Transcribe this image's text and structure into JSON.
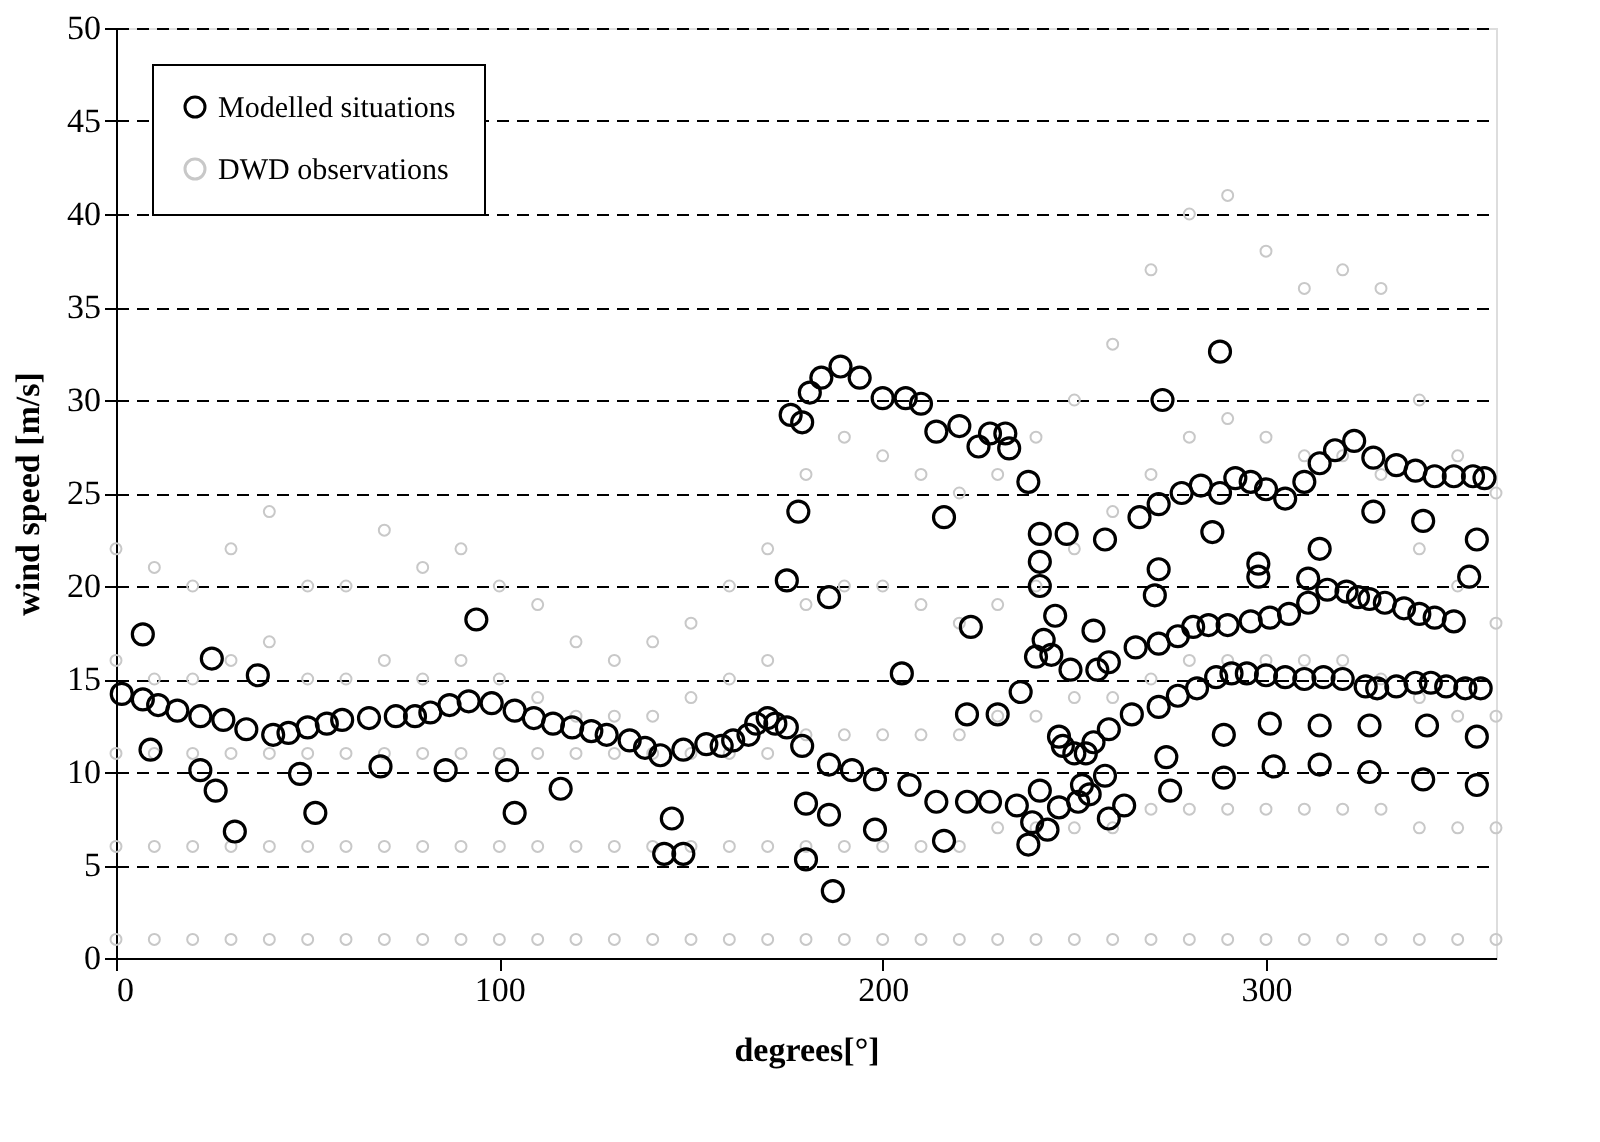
{
  "chart_data": {
    "type": "scatter",
    "xlabel": "degrees[°]",
    "ylabel": "wind speed [m/s]",
    "xlim": [
      0,
      360
    ],
    "xticks": [
      0,
      100,
      200,
      300
    ],
    "ylim": [
      0,
      50
    ],
    "yticks": [
      0,
      5,
      10,
      15,
      20,
      25,
      30,
      35,
      40,
      45,
      50
    ],
    "grid": "y",
    "legend": "top left",
    "marker": "circle",
    "series": [
      {
        "name": "Modelled situations",
        "color": "#000000",
        "x": [
          1.5,
          7,
          11,
          16,
          22,
          28,
          34,
          41,
          45,
          50,
          55,
          59,
          66,
          73,
          78,
          82,
          87,
          92,
          98,
          104,
          109,
          114,
          119,
          124,
          128,
          134,
          138,
          142,
          148,
          154,
          158,
          161,
          165,
          167,
          170,
          172,
          175,
          179,
          186,
          192,
          198,
          207,
          214,
          222,
          228,
          235,
          7,
          25,
          37,
          94,
          9,
          22,
          26,
          31,
          48,
          52,
          69,
          86,
          102,
          104,
          116,
          145,
          143,
          148,
          180,
          186,
          180,
          187,
          198,
          216,
          175,
          178,
          186,
          216,
          223,
          205,
          222,
          230,
          176,
          179,
          181,
          184,
          189,
          194,
          200,
          206,
          210,
          214,
          220,
          225,
          228,
          232,
          233,
          238,
          259,
          265,
          272,
          277,
          282,
          287,
          291,
          295,
          300,
          305,
          310,
          315,
          320,
          326,
          329,
          334,
          339,
          343,
          347,
          352,
          356,
          266,
          272,
          277,
          281,
          285,
          290,
          296,
          301,
          306,
          311,
          316,
          321,
          324,
          327,
          331,
          336,
          340,
          344,
          349,
          267,
          272,
          278,
          283,
          288,
          292,
          296,
          300,
          305,
          310,
          314,
          318,
          323,
          328,
          334,
          339,
          344,
          349,
          354,
          357,
          288,
          273,
          241,
          248,
          258,
          241,
          241,
          245,
          255,
          242,
          240,
          244,
          249,
          256,
          259,
          236,
          246,
          247,
          250,
          253,
          255,
          258,
          252,
          254,
          251,
          246,
          241,
          239,
          243,
          238,
          259,
          263,
          274,
          275,
          289,
          289,
          301,
          302,
          314,
          314,
          327,
          327,
          342,
          341,
          355,
          355,
          272,
          271,
          286,
          298,
          298,
          314,
          311,
          328,
          341,
          355,
          353
        ],
        "values": [
          14.2,
          13.9,
          13.6,
          13.3,
          13.0,
          12.8,
          12.3,
          12.0,
          12.1,
          12.4,
          12.6,
          12.8,
          12.9,
          13.0,
          13.0,
          13.2,
          13.6,
          13.8,
          13.7,
          13.3,
          12.9,
          12.6,
          12.4,
          12.2,
          12.0,
          11.7,
          11.3,
          10.9,
          11.2,
          11.5,
          11.4,
          11.7,
          12.0,
          12.6,
          12.9,
          12.6,
          12.4,
          11.4,
          10.4,
          10.1,
          9.6,
          9.3,
          8.4,
          8.4,
          8.4,
          8.2,
          17.4,
          16.1,
          15.2,
          18.2,
          11.2,
          10.1,
          9.0,
          6.8,
          9.9,
          7.8,
          10.3,
          10.1,
          10.1,
          7.8,
          9.1,
          7.5,
          5.6,
          5.6,
          8.3,
          7.7,
          5.3,
          3.6,
          6.9,
          6.3,
          20.3,
          24.0,
          19.4,
          23.7,
          17.8,
          15.3,
          13.1,
          13.1,
          29.2,
          28.8,
          30.4,
          31.2,
          31.8,
          31.2,
          30.1,
          30.1,
          29.8,
          28.3,
          28.6,
          27.5,
          28.2,
          28.2,
          27.4,
          25.6,
          12.3,
          13.1,
          13.5,
          14.1,
          14.5,
          15.1,
          15.3,
          15.3,
          15.2,
          15.1,
          15.0,
          15.1,
          15.0,
          14.6,
          14.5,
          14.6,
          14.8,
          14.8,
          14.6,
          14.5,
          14.5,
          16.7,
          16.9,
          17.3,
          17.8,
          17.9,
          17.9,
          18.1,
          18.3,
          18.5,
          19.1,
          19.8,
          19.7,
          19.4,
          19.3,
          19.1,
          18.8,
          18.5,
          18.3,
          18.1,
          23.7,
          24.4,
          25.0,
          25.4,
          25.0,
          25.8,
          25.6,
          25.2,
          24.7,
          25.6,
          26.6,
          27.3,
          27.8,
          26.9,
          26.5,
          26.2,
          25.9,
          25.9,
          25.9,
          25.8,
          32.6,
          30.0,
          22.8,
          22.8,
          22.5,
          21.3,
          20.0,
          18.4,
          17.6,
          17.1,
          16.2,
          16.3,
          15.5,
          15.5,
          15.9,
          14.3,
          11.9,
          11.4,
          11.0,
          11.0,
          11.6,
          9.8,
          9.3,
          8.8,
          8.4,
          8.1,
          9.0,
          7.3,
          6.9,
          6.1,
          7.5,
          8.2,
          10.8,
          9.0,
          12.0,
          9.7,
          12.6,
          10.3,
          12.5,
          10.4,
          12.5,
          10.0,
          12.5,
          9.6,
          11.9,
          9.3,
          20.9,
          19.5,
          22.9,
          21.2,
          20.5,
          22.0,
          20.4,
          24.0,
          23.5,
          22.5,
          20.5
        ]
      },
      {
        "name": "DWD observations",
        "color": "#c8c8c8",
        "x": [
          0,
          0,
          0,
          0,
          0,
          10,
          10,
          10,
          10,
          10,
          20,
          20,
          20,
          20,
          20,
          30,
          30,
          30,
          30,
          30,
          40,
          40,
          40,
          40,
          40,
          50,
          50,
          50,
          50,
          50,
          60,
          60,
          60,
          60,
          60,
          70,
          70,
          70,
          70,
          70,
          80,
          80,
          80,
          80,
          80,
          90,
          90,
          90,
          90,
          90,
          100,
          100,
          100,
          100,
          100,
          110,
          110,
          110,
          110,
          110,
          120,
          120,
          120,
          120,
          120,
          130,
          130,
          130,
          130,
          130,
          140,
          140,
          140,
          140,
          140,
          150,
          150,
          150,
          150,
          150,
          160,
          160,
          160,
          160,
          160,
          170,
          170,
          170,
          170,
          170,
          180,
          180,
          180,
          180,
          180,
          190,
          190,
          190,
          190,
          190,
          200,
          200,
          200,
          200,
          200,
          210,
          210,
          210,
          210,
          210,
          220,
          220,
          220,
          220,
          220,
          230,
          230,
          230,
          230,
          230,
          240,
          240,
          240,
          240,
          240,
          250,
          250,
          250,
          250,
          250,
          260,
          260,
          260,
          260,
          260,
          270,
          270,
          270,
          270,
          270,
          280,
          280,
          280,
          280,
          280,
          290,
          290,
          290,
          290,
          290,
          300,
          300,
          300,
          300,
          300,
          310,
          310,
          310,
          310,
          310,
          320,
          320,
          320,
          320,
          320,
          330,
          330,
          330,
          330,
          330,
          340,
          340,
          340,
          340,
          340,
          350,
          350,
          350,
          350,
          350,
          360,
          360,
          360,
          360,
          360
        ],
        "values": [
          1,
          6,
          11,
          16,
          22,
          1,
          6,
          11,
          15,
          21,
          1,
          6,
          11,
          15,
          20,
          1,
          6,
          11,
          16,
          22,
          1,
          6,
          11,
          17,
          24,
          1,
          6,
          11,
          15,
          20,
          1,
          6,
          11,
          15,
          20,
          1,
          6,
          11,
          16,
          23,
          1,
          6,
          11,
          15,
          21,
          1,
          6,
          11,
          16,
          22,
          1,
          6,
          11,
          15,
          20,
          1,
          6,
          11,
          14,
          19,
          1,
          6,
          11,
          13,
          17,
          1,
          6,
          11,
          13,
          16,
          1,
          6,
          11,
          13,
          17,
          1,
          6,
          11,
          14,
          18,
          1,
          6,
          11,
          15,
          20,
          1,
          6,
          11,
          16,
          22,
          1,
          6,
          12,
          19,
          26,
          1,
          6,
          12,
          20,
          28,
          1,
          6,
          12,
          20,
          27,
          1,
          6,
          12,
          19,
          26,
          1,
          6,
          12,
          18,
          25,
          1,
          7,
          13,
          19,
          26,
          1,
          7,
          13,
          20,
          28,
          1,
          7,
          14,
          22,
          30,
          1,
          7,
          14,
          24,
          33,
          1,
          8,
          15,
          26,
          37,
          1,
          8,
          16,
          28,
          40,
          1,
          8,
          16,
          29,
          41,
          1,
          8,
          16,
          28,
          38,
          1,
          8,
          16,
          27,
          36,
          1,
          8,
          16,
          27,
          37,
          1,
          8,
          15,
          26,
          36,
          1,
          7,
          14,
          22,
          30,
          1,
          7,
          13,
          20,
          27,
          1,
          7,
          13,
          18,
          25
        ]
      }
    ]
  }
}
